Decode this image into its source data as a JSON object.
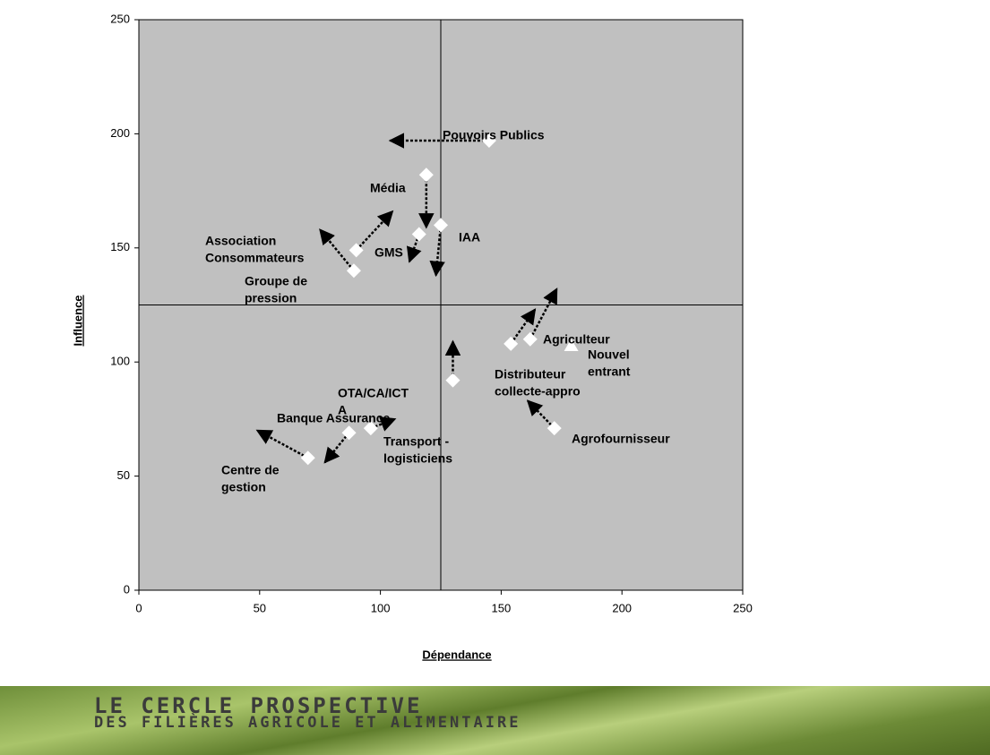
{
  "chart_data": {
    "type": "scatter",
    "xlabel": "Dépendance",
    "ylabel": "Influence",
    "xlim": [
      0,
      250
    ],
    "ylim": [
      0,
      250
    ],
    "xticks": [
      0,
      50,
      100,
      150,
      200,
      250
    ],
    "yticks": [
      0,
      50,
      100,
      150,
      200,
      250
    ],
    "reference_lines": {
      "x": 125,
      "y": 125
    },
    "plot_color": "#c0c0c0",
    "marker_color": "#ffffff",
    "arrow_color": "#000000",
    "labels": [
      [
        "Pouvoirs Publics"
      ],
      [
        "Média"
      ],
      [
        "IAA"
      ],
      [
        "GMS"
      ],
      [
        "Association",
        "Consommateurs"
      ],
      [
        "Groupe de",
        "pression"
      ],
      [
        "Agriculteur"
      ],
      [
        "Distributeur",
        "collecte-appro"
      ],
      [
        "Nouvel",
        "entrant"
      ],
      [
        "OTA/CA/ICT",
        "A"
      ],
      [
        "Agrofournisseur"
      ],
      [
        "Transport -",
        "logisticiens"
      ],
      [
        "Banque Assurance"
      ],
      [
        "Centre de",
        "gestion"
      ]
    ],
    "markers": [
      "diamond",
      "diamond",
      "diamond",
      "diamond",
      "diamond",
      "diamond",
      "diamond",
      "diamond",
      "triangle",
      "diamond",
      "diamond",
      "diamond",
      "diamond",
      "diamond"
    ],
    "x": [
      145,
      119,
      125,
      116,
      90,
      89,
      162,
      154,
      179,
      130,
      172,
      96,
      87,
      70
    ],
    "values": [
      197,
      182,
      160,
      156,
      149,
      140,
      110,
      108,
      107,
      92,
      71,
      71,
      69,
      58
    ],
    "arrow_x": [
      104,
      119,
      123,
      112,
      105,
      75,
      173,
      164,
      null,
      130,
      161,
      106,
      77,
      49
    ],
    "arrow_y": [
      197,
      159,
      138,
      144,
      166,
      158,
      132,
      123,
      null,
      109,
      83,
      75,
      56,
      70
    ]
  },
  "banner": {
    "line1": "LE CERCLE PROSPECTIVE",
    "line2": "DES FILIÈRES AGRICOLE ET ALIMENTAIRE"
  }
}
